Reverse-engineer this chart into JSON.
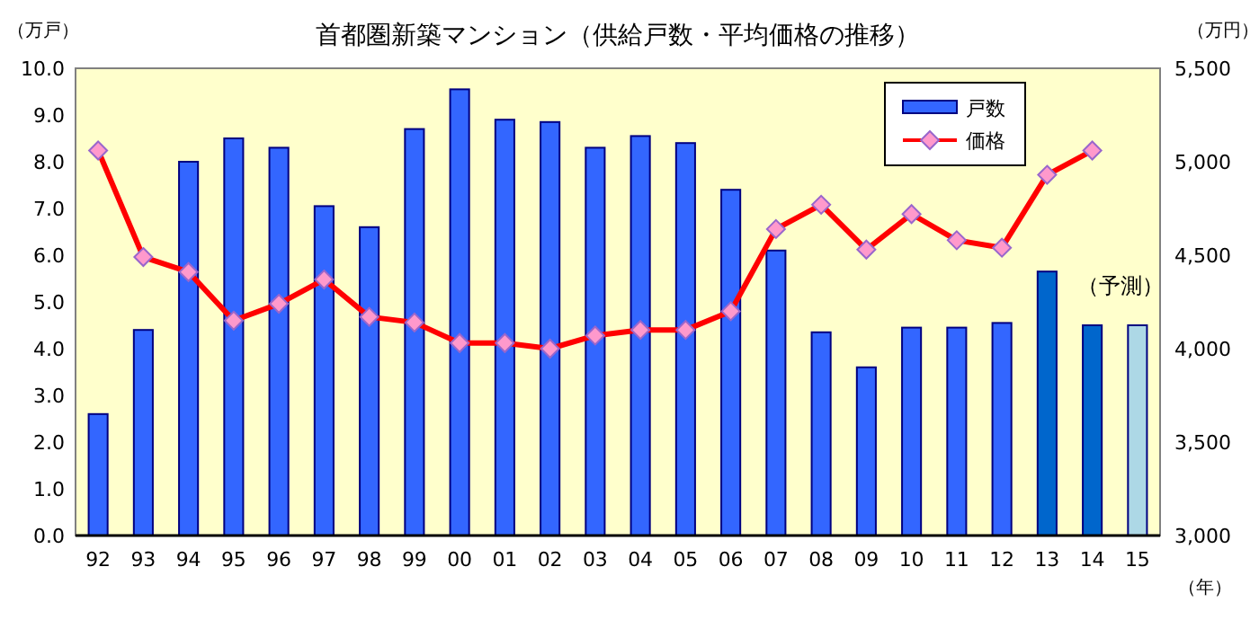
{
  "chart_data": {
    "type": "bar",
    "title": "首都圏新築マンション（供給戸数・平均価格の推移）",
    "ylabel": "（万戸）",
    "y2label": "（万円）",
    "xlabel": "（年）",
    "categories": [
      "92",
      "93",
      "94",
      "95",
      "96",
      "97",
      "98",
      "99",
      "00",
      "01",
      "02",
      "03",
      "04",
      "05",
      "06",
      "07",
      "08",
      "09",
      "10",
      "11",
      "12",
      "13",
      "14",
      "15"
    ],
    "series": [
      {
        "name": "戸数",
        "color": "#3366ff",
        "colors": [
          "#3366ff",
          "#3366ff",
          "#3366ff",
          "#3366ff",
          "#3366ff",
          "#3366ff",
          "#3366ff",
          "#3366ff",
          "#3366ff",
          "#3366ff",
          "#3366ff",
          "#3366ff",
          "#3366ff",
          "#3366ff",
          "#3366ff",
          "#3366ff",
          "#3366ff",
          "#3366ff",
          "#3366ff",
          "#3366ff",
          "#3366ff",
          "#0066cc",
          "#0066cc",
          "#add8e6"
        ],
        "values": [
          2.6,
          4.4,
          8.0,
          8.5,
          8.3,
          7.05,
          6.6,
          8.7,
          9.55,
          8.9,
          8.85,
          8.3,
          8.55,
          8.4,
          7.4,
          6.1,
          4.35,
          3.6,
          4.45,
          4.45,
          4.55,
          5.65,
          4.5,
          4.5
        ]
      },
      {
        "name": "価格",
        "type": "line",
        "axis": "y2",
        "color": "#ff0000",
        "marker": "diamond",
        "values": [
          5060,
          4490,
          4410,
          4150,
          4240,
          4370,
          4170,
          4140,
          4030,
          4030,
          4000,
          4070,
          4100,
          4100,
          4200,
          4640,
          4770,
          4530,
          4720,
          4580,
          4540,
          4930,
          5060,
          null
        ]
      }
    ],
    "ylim": [
      0,
      10
    ],
    "yticks": [
      {
        "value": 0,
        "label": "0.0"
      },
      {
        "value": 1,
        "label": "1.0"
      },
      {
        "value": 2,
        "label": "2.0"
      },
      {
        "value": 3,
        "label": "3.0"
      },
      {
        "value": 4,
        "label": "4.0"
      },
      {
        "value": 5,
        "label": "5.0"
      },
      {
        "value": 6,
        "label": "6.0"
      },
      {
        "value": 7,
        "label": "7.0"
      },
      {
        "value": 8,
        "label": "8.0"
      },
      {
        "value": 9,
        "label": "9.0"
      },
      {
        "value": 10,
        "label": "10.0"
      }
    ],
    "y2lim": [
      3000,
      5500
    ],
    "y2ticks": [
      {
        "value": 3000,
        "label": "3,000"
      },
      {
        "value": 3500,
        "label": "3,500"
      },
      {
        "value": 4000,
        "label": "4,000"
      },
      {
        "value": 4500,
        "label": "4,500"
      },
      {
        "value": 5000,
        "label": "5,000"
      },
      {
        "value": 5500,
        "label": "5,500"
      }
    ],
    "annotations": [
      "（予測）"
    ],
    "legend": "top right",
    "grid": false
  }
}
